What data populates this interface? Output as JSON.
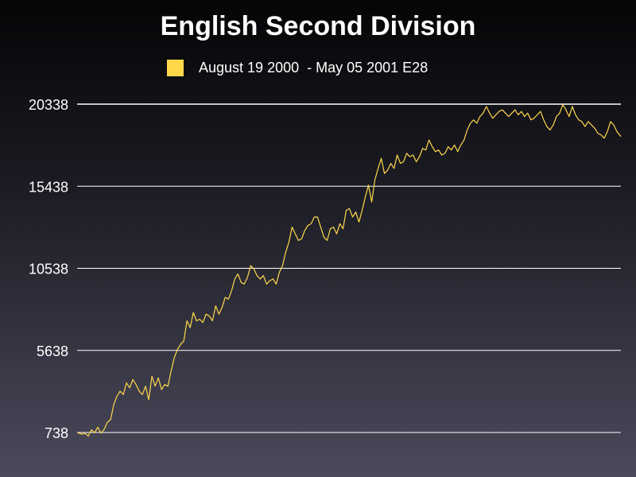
{
  "chart_data": {
    "type": "line",
    "title": "English Second Division",
    "series": [
      {
        "name": "August 19 2000  - May 05 2001 E28",
        "color": "#ffd84a",
        "points": [
          [
            0,
            738
          ],
          [
            6,
            640
          ],
          [
            10,
            680
          ],
          [
            14,
            520
          ],
          [
            18,
            900
          ],
          [
            22,
            720
          ],
          [
            26,
            1050
          ],
          [
            30,
            700
          ],
          [
            34,
            930
          ],
          [
            38,
            1350
          ],
          [
            42,
            1500
          ],
          [
            46,
            2400
          ],
          [
            50,
            2900
          ],
          [
            54,
            3200
          ],
          [
            58,
            3000
          ],
          [
            62,
            3700
          ],
          [
            66,
            3400
          ],
          [
            70,
            3900
          ],
          [
            74,
            3600
          ],
          [
            78,
            3200
          ],
          [
            82,
            3000
          ],
          [
            86,
            3500
          ],
          [
            90,
            2700
          ],
          [
            94,
            4100
          ],
          [
            98,
            3500
          ],
          [
            102,
            4000
          ],
          [
            106,
            3300
          ],
          [
            110,
            3600
          ],
          [
            114,
            3500
          ],
          [
            118,
            4400
          ],
          [
            122,
            5200
          ],
          [
            126,
            5700
          ],
          [
            130,
            6000
          ],
          [
            134,
            6200
          ],
          [
            138,
            7400
          ],
          [
            142,
            7000
          ],
          [
            146,
            7900
          ],
          [
            150,
            7400
          ],
          [
            154,
            7500
          ],
          [
            158,
            7300
          ],
          [
            162,
            7800
          ],
          [
            166,
            7700
          ],
          [
            170,
            7400
          ],
          [
            174,
            8300
          ],
          [
            178,
            7800
          ],
          [
            182,
            8200
          ],
          [
            186,
            8800
          ],
          [
            190,
            8700
          ],
          [
            194,
            9200
          ],
          [
            198,
            9900
          ],
          [
            202,
            10200
          ],
          [
            206,
            9700
          ],
          [
            210,
            9600
          ],
          [
            214,
            10000
          ],
          [
            218,
            10700
          ],
          [
            222,
            10500
          ],
          [
            226,
            10100
          ],
          [
            230,
            9900
          ],
          [
            234,
            10100
          ],
          [
            238,
            9600
          ],
          [
            242,
            9800
          ],
          [
            246,
            9900
          ],
          [
            250,
            9600
          ],
          [
            254,
            10300
          ],
          [
            258,
            10700
          ],
          [
            262,
            11500
          ],
          [
            266,
            12100
          ],
          [
            270,
            13000
          ],
          [
            274,
            12600
          ],
          [
            278,
            12200
          ],
          [
            282,
            12300
          ],
          [
            286,
            12800
          ],
          [
            290,
            13100
          ],
          [
            294,
            13200
          ],
          [
            298,
            13600
          ],
          [
            302,
            13600
          ],
          [
            306,
            13000
          ],
          [
            310,
            12400
          ],
          [
            314,
            12200
          ],
          [
            318,
            12900
          ],
          [
            322,
            13000
          ],
          [
            326,
            12600
          ],
          [
            330,
            13200
          ],
          [
            334,
            12900
          ],
          [
            338,
            14000
          ],
          [
            342,
            14100
          ],
          [
            346,
            13600
          ],
          [
            350,
            13900
          ],
          [
            354,
            13300
          ],
          [
            358,
            14000
          ],
          [
            362,
            14800
          ],
          [
            366,
            15500
          ],
          [
            370,
            14500
          ],
          [
            374,
            15800
          ],
          [
            378,
            16500
          ],
          [
            382,
            17100
          ],
          [
            386,
            16200
          ],
          [
            390,
            16400
          ],
          [
            394,
            16800
          ],
          [
            398,
            16500
          ],
          [
            402,
            17300
          ],
          [
            406,
            16800
          ],
          [
            410,
            16900
          ],
          [
            414,
            17400
          ],
          [
            418,
            17200
          ],
          [
            422,
            17300
          ],
          [
            426,
            16900
          ],
          [
            430,
            17200
          ],
          [
            434,
            17700
          ],
          [
            438,
            17600
          ],
          [
            442,
            18200
          ],
          [
            446,
            17800
          ],
          [
            450,
            17500
          ],
          [
            454,
            17600
          ],
          [
            458,
            17300
          ],
          [
            462,
            17400
          ],
          [
            466,
            17800
          ],
          [
            470,
            17600
          ],
          [
            474,
            17900
          ],
          [
            478,
            17500
          ],
          [
            482,
            17900
          ],
          [
            486,
            18200
          ],
          [
            490,
            18800
          ],
          [
            494,
            19200
          ],
          [
            498,
            19400
          ],
          [
            502,
            19200
          ],
          [
            506,
            19600
          ],
          [
            510,
            19800
          ],
          [
            514,
            20200
          ],
          [
            518,
            19800
          ],
          [
            522,
            19500
          ],
          [
            526,
            19700
          ],
          [
            530,
            19900
          ],
          [
            534,
            20000
          ],
          [
            538,
            19800
          ],
          [
            542,
            19600
          ],
          [
            546,
            19800
          ],
          [
            550,
            20000
          ],
          [
            554,
            19700
          ],
          [
            558,
            19900
          ],
          [
            562,
            19600
          ],
          [
            566,
            19800
          ],
          [
            570,
            19400
          ],
          [
            574,
            19500
          ],
          [
            578,
            19700
          ],
          [
            582,
            19900
          ],
          [
            586,
            19400
          ],
          [
            590,
            19000
          ],
          [
            594,
            18800
          ],
          [
            598,
            19100
          ],
          [
            602,
            19600
          ],
          [
            606,
            19800
          ],
          [
            610,
            20300
          ],
          [
            614,
            20000
          ],
          [
            618,
            19600
          ],
          [
            622,
            20200
          ],
          [
            626,
            19700
          ],
          [
            630,
            19400
          ],
          [
            634,
            19300
          ],
          [
            638,
            19000
          ],
          [
            642,
            19300
          ],
          [
            646,
            19100
          ],
          [
            650,
            18900
          ],
          [
            654,
            18600
          ],
          [
            658,
            18500
          ],
          [
            662,
            18300
          ],
          [
            666,
            18700
          ],
          [
            670,
            19300
          ],
          [
            674,
            19100
          ],
          [
            678,
            18700
          ],
          [
            683,
            18400
          ]
        ]
      }
    ],
    "xlim": [
      0,
      683
    ],
    "ylim": [
      738,
      20338
    ],
    "yticks": [
      738,
      5638,
      10538,
      15438,
      20338
    ],
    "grid": true,
    "legend_position": "top-center"
  }
}
